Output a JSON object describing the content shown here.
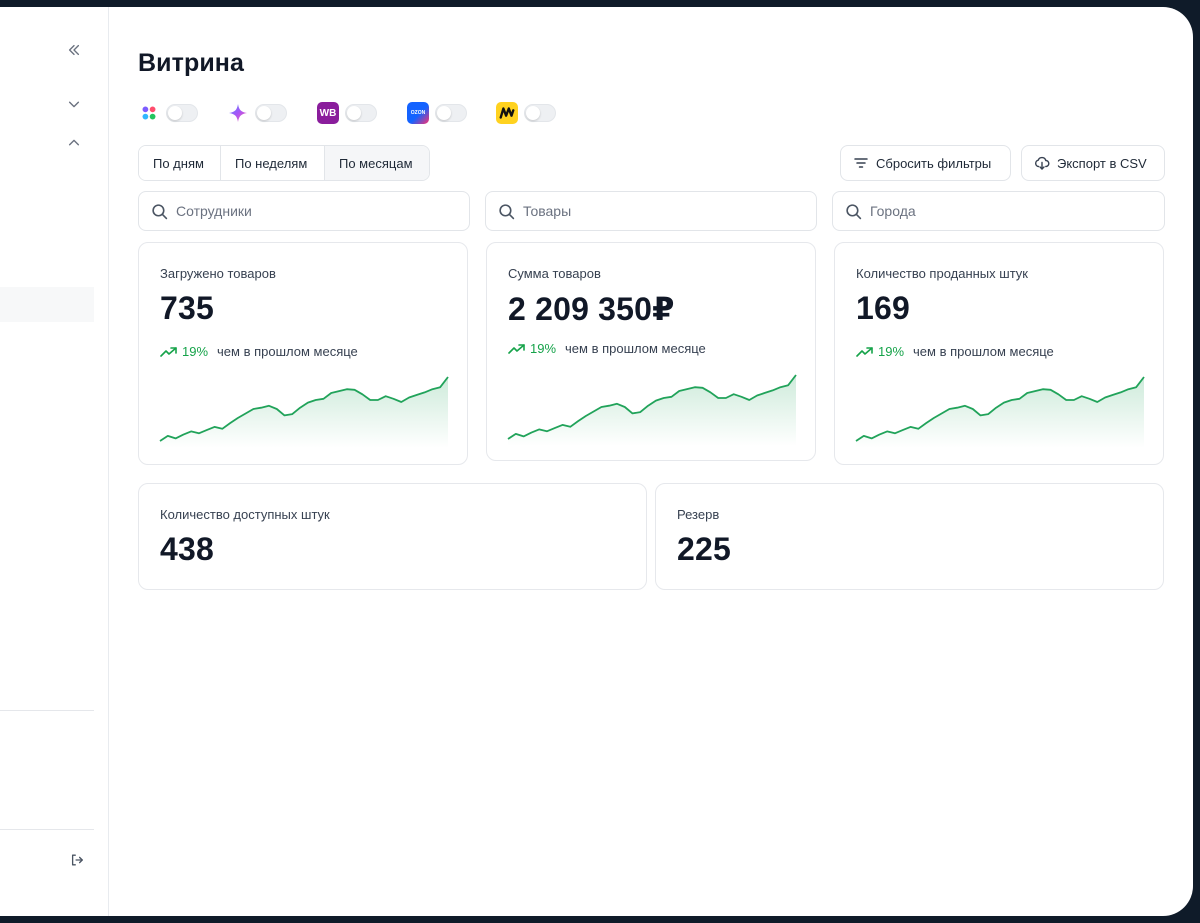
{
  "colors": {
    "accent_green": "#16a34a",
    "sparkline": "#21a35a",
    "wildberries": "#8a1d9c",
    "ozon": "#1463ff",
    "yandex_market": "#ffd21f"
  },
  "sidebar": {
    "collapse_icon": "double-chevron-left-icon",
    "expand_icon": "chevron-down-icon",
    "collapse_group_icon": "chevron-up-icon",
    "logout_icon": "logout-icon"
  },
  "page": {
    "title": "Витрина"
  },
  "marketplaces": [
    {
      "name": "multicolor-dots-logo",
      "enabled": false
    },
    {
      "name": "sparkle-logo",
      "enabled": false
    },
    {
      "name": "wildberries-logo",
      "badge": "WB",
      "enabled": false
    },
    {
      "name": "ozon-logo",
      "badge": "OZON",
      "enabled": false
    },
    {
      "name": "yandex-market-logo",
      "enabled": false
    }
  ],
  "period": {
    "options": [
      "По дням",
      "По неделям",
      "По месяцам"
    ],
    "selected": "По месяцам"
  },
  "toolbar": {
    "reset_label": "Сбросить фильтры",
    "export_label": "Экспорт в CSV"
  },
  "filters": {
    "employees_placeholder": "Сотрудники",
    "products_placeholder": "Товары",
    "cities_placeholder": "Города"
  },
  "cards": {
    "uploaded": {
      "label": "Загружено товаров",
      "value": "735",
      "trend_pct": "19%",
      "trend_text": "чем в прошлом месяце"
    },
    "sum": {
      "label": "Сумма товаров",
      "value": "2 209 350₽",
      "trend_pct": "19%",
      "trend_text": "чем в прошлом месяце"
    },
    "sold": {
      "label": "Количество проданных штук",
      "value": "169",
      "trend_pct": "19%",
      "trend_text": "чем в прошлом месяце"
    },
    "available": {
      "label": "Количество доступных штук",
      "value": "438"
    },
    "reserve": {
      "label": "Резерв",
      "value": "225"
    }
  }
}
